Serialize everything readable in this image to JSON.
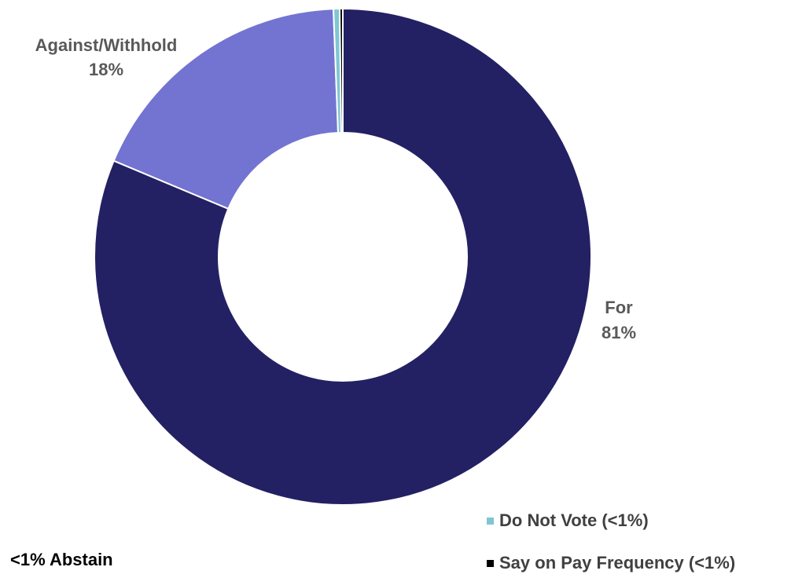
{
  "chart_data": {
    "type": "pie",
    "variant": "donut",
    "slices": [
      {
        "name": "For",
        "value": 81,
        "label_line1": "For",
        "label_line2": "81%",
        "color": "#232163"
      },
      {
        "name": "Against/Withhold",
        "value": 18,
        "label_line1": "Against/Withhold",
        "label_line2": "18%",
        "color": "#7373d1"
      },
      {
        "name": "Do Not Vote",
        "value": 0.4,
        "color": "#7fc6d2"
      },
      {
        "name": "Say on Pay Frequency",
        "value": 0.2,
        "color": "#000000"
      }
    ],
    "legend": [
      {
        "label": "Do Not Vote (<1%)",
        "color": "#7fc6d2"
      },
      {
        "label": "Say on Pay Frequency (<1%)",
        "color": "#000000"
      }
    ],
    "legend_position": "bottom-right",
    "annotation": "<1% Abstain"
  }
}
